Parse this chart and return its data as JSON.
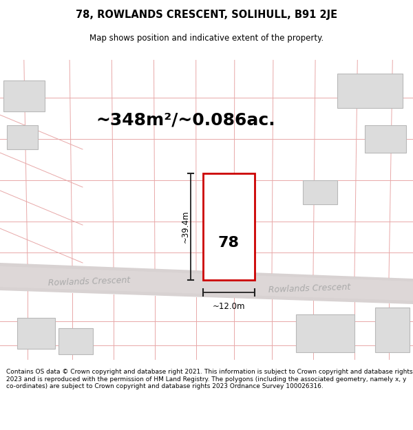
{
  "title": "78, ROWLANDS CRESCENT, SOLIHULL, B91 2JE",
  "subtitle": "Map shows position and indicative extent of the property.",
  "area_text": "~348m²/~0.086ac.",
  "house_number": "78",
  "width_label": "~12.0m",
  "height_label": "~39.4m",
  "road_name_left": "Rowlands Crescent",
  "road_name_right": "Rowlands Crescent",
  "footer": "Contains OS data © Crown copyright and database right 2021. This information is subject to Crown copyright and database rights 2023 and is reproduced with the permission of HM Land Registry. The polygons (including the associated geometry, namely x, y co-ordinates) are subject to Crown copyright and database rights 2023 Ordnance Survey 100026316.",
  "map_bg": "#f5f0f0",
  "road_fill": "#d8d2d2",
  "road_inner": "#e2dcdc",
  "grid_color": "#e8a8a8",
  "plot_border": "#cc0000",
  "plot_fill": "#ffffff",
  "dim_color": "#222222",
  "building_fill": "#dcdcdc",
  "building_stroke": "#b8b8b8",
  "road_label_color": "#aaaaaa",
  "title_fontsize": 10.5,
  "subtitle_fontsize": 8.5,
  "area_fontsize": 18,
  "footer_fontsize": 6.5
}
